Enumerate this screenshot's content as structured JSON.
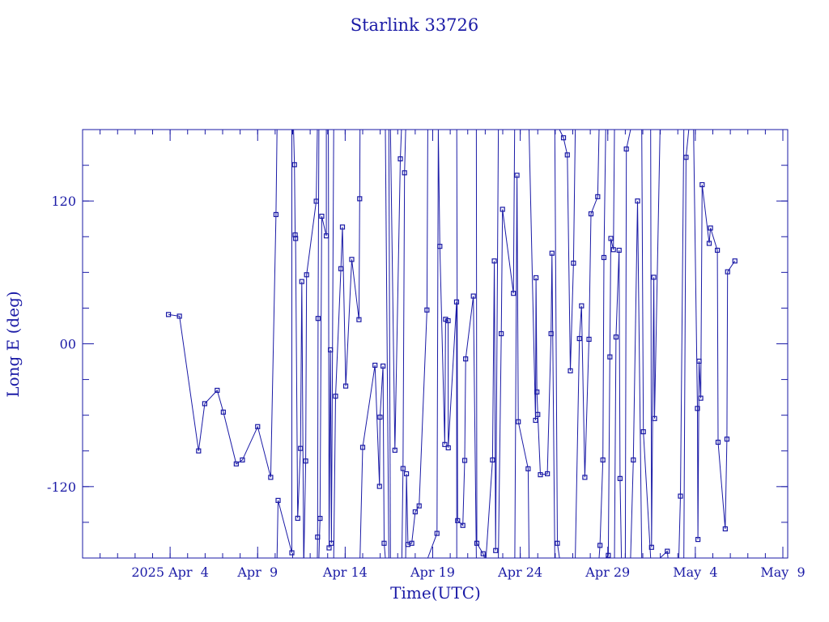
{
  "chart_data": {
    "type": "line",
    "title": "Starlink 33726",
    "xlabel": "Time(UTC)",
    "ylabel": "Long E (deg)",
    "x_tick_labels": [
      "2025 Apr  4",
      "Apr  9",
      "Apr 14",
      "Apr 19",
      "Apr 24",
      "Apr 29",
      "May  4",
      "May  9"
    ],
    "y_tick_labels": [
      "-120",
      "00",
      "120"
    ],
    "xlim": [
      "2025-03-30T00:00",
      "2025-05-09T00:00"
    ],
    "ylim": [
      -180,
      180
    ],
    "x_major_ticks": [
      "2025-04-04T00:00",
      "2025-04-09T00:00",
      "2025-04-14T00:00",
      "2025-04-19T00:00",
      "2025-04-24T00:00",
      "2025-04-29T00:00",
      "2025-05-04T00:00",
      "2025-05-09T00:00"
    ],
    "y_major_ticks": [
      -120,
      0,
      120
    ],
    "y_minor_step": 30,
    "grid": false,
    "color": "#1a1aa6",
    "marker": "square",
    "series": [
      {
        "points": [
          [
            "2025-04-03T21:45",
            24.6
          ],
          [
            "2025-04-04T12:48",
            23.2
          ],
          [
            "2025-04-05T15:03",
            -90.0
          ],
          [
            "2025-04-05T23:28",
            -50.3
          ],
          [
            "2025-04-06T16:33",
            -39.1
          ],
          [
            "2025-04-07T00:57",
            -57.4
          ],
          [
            "2025-04-07T18:42",
            -100.9
          ],
          [
            "2025-04-08T03:06",
            -97.6
          ],
          [
            "2025-04-09T00:00",
            -69.6
          ],
          [
            "2025-04-09T17:54",
            -112.2
          ],
          [
            "2025-04-10T01:09",
            108.6
          ],
          [
            "2025-04-10T02:37",
            180
          ],
          null,
          [
            "2025-04-10T02:37",
            -180
          ],
          [
            "2025-04-10T04:03",
            -131.6
          ],
          [
            "2025-04-10T22:54",
            -175.6
          ],
          [
            "2025-04-10T22:54",
            180
          ],
          null,
          [
            "2025-04-11T01:10",
            180
          ],
          [
            "2025-04-11T02:29",
            150.5
          ],
          [
            "2025-04-11T03:25",
            91.5
          ],
          [
            "2025-04-11T04:03",
            88.5
          ],
          [
            "2025-04-11T06:56",
            -146.6
          ],
          [
            "2025-04-11T10:48",
            -87.9
          ],
          [
            "2025-04-11T12:31",
            52.3
          ],
          [
            "2025-04-11T15:03",
            -180
          ],
          null,
          [
            "2025-04-11T15:03",
            180
          ],
          [
            "2025-04-11T15:28",
            180
          ],
          null,
          [
            "2025-04-11T15:28",
            -180
          ],
          [
            "2025-04-11T17:52",
            -98.5
          ],
          [
            "2025-04-11T19:04",
            58.0
          ],
          [
            "2025-04-12T08:20",
            119.8
          ],
          [
            "2025-04-12T09:54",
            180
          ],
          null,
          [
            "2025-04-12T09:54",
            -180
          ],
          [
            "2025-04-12T10:12",
            -162.4
          ],
          [
            "2025-04-12T10:48",
            21.3
          ],
          [
            "2025-04-12T11:59",
            180
          ],
          null,
          [
            "2025-04-12T11:59",
            -180
          ],
          [
            "2025-04-12T13:32",
            -146.7
          ],
          [
            "2025-04-12T15:53",
            107.2
          ],
          [
            "2025-04-12T22:07",
            90.7
          ],
          [
            "2025-04-12T22:07",
            180
          ],
          null,
          [
            "2025-04-13T00:56",
            180
          ],
          [
            "2025-04-13T01:56",
            -171.5
          ],
          [
            "2025-04-13T03:48",
            -5.1
          ],
          [
            "2025-04-13T05:10",
            -167.6
          ],
          [
            "2025-04-13T08:17",
            180
          ],
          null,
          [
            "2025-04-13T08:17",
            -180
          ],
          [
            "2025-04-13T10:48",
            -44.0
          ],
          [
            "2025-04-13T18:07",
            63.1
          ],
          [
            "2025-04-13T20:15",
            98.1
          ],
          [
            "2025-04-14T00:45",
            -35.5
          ],
          [
            "2025-04-14T09:00",
            70.9
          ],
          [
            "2025-04-14T18:55",
            20.3
          ],
          [
            "2025-04-14T19:52",
            121.9
          ],
          [
            "2025-04-14T20:21",
            180
          ],
          null,
          [
            "2025-04-14T20:21",
            -180
          ],
          [
            "2025-04-15T00:00",
            -87.0
          ],
          [
            "2025-04-15T16:52",
            -18.0
          ],
          [
            "2025-04-15T23:03",
            -119.8
          ],
          [
            "2025-04-15T23:45",
            -61.6
          ],
          [
            "2025-04-16T03:52",
            -18.7
          ],
          [
            "2025-04-16T05:22",
            -167.6
          ],
          [
            "2025-04-16T07:02",
            -180
          ],
          null,
          [
            "2025-04-16T07:02",
            180
          ],
          [
            "2025-04-16T11:48",
            -180
          ],
          null,
          [
            "2025-04-16T11:48",
            180
          ],
          [
            "2025-04-16T14:05",
            -180
          ],
          null,
          [
            "2025-04-16T14:05",
            180
          ],
          [
            "2025-04-16T20:09",
            -89.4
          ],
          [
            "2025-04-17T03:36",
            155.4
          ],
          [
            "2025-04-17T05:10",
            180
          ],
          null,
          [
            "2025-04-17T05:46",
            -180
          ],
          [
            "2025-04-17T07:19",
            -104.8
          ],
          [
            "2025-04-17T09:22",
            143.7
          ],
          [
            "2025-04-17T10:58",
            180
          ],
          null,
          [
            "2025-04-17T10:58",
            -180
          ],
          [
            "2025-04-17T12:00",
            -109.2
          ],
          [
            "2025-04-17T14:05",
            -168.6
          ],
          [
            "2025-04-17T19:16",
            -167.6
          ],
          [
            "2025-04-18T00:00",
            -141.2
          ],
          [
            "2025-04-18T05:24",
            -136.2
          ],
          [
            "2025-04-18T16:04",
            28.4
          ],
          [
            "2025-04-18T17:12",
            180
          ],
          null,
          [
            "2025-04-18T17:12",
            -180
          ],
          [
            "2025-04-19T05:50",
            -159.3
          ],
          [
            "2025-04-19T07:37",
            180
          ],
          [
            "2025-04-19T07:37",
            180
          ],
          [
            "2025-04-19T09:46",
            81.9
          ],
          [
            "2025-04-19T16:33",
            -84.6
          ],
          [
            "2025-04-19T17:38",
            20.6
          ],
          [
            "2025-04-19T21:07",
            19.4
          ],
          [
            "2025-04-19T21:21",
            -87.4
          ],
          [
            "2025-04-20T08:42",
            35.2
          ],
          [
            "2025-04-20T08:56",
            -180
          ],
          null,
          [
            "2025-04-20T08:56",
            180
          ],
          [
            "2025-04-20T10:12",
            -148.6
          ],
          [
            "2025-04-20T17:17",
            -152.6
          ],
          [
            "2025-04-20T19:52",
            -98.0
          ],
          [
            "2025-04-20T21:07",
            -12.7
          ],
          [
            "2025-04-21T07:44",
            40.1
          ],
          [
            "2025-04-21T11:48",
            -180
          ],
          null,
          [
            "2025-04-21T11:48",
            180
          ],
          [
            "2025-04-21T12:28",
            -167.6
          ],
          [
            "2025-04-21T21:07",
            -176.4
          ],
          [
            "2025-04-21T23:02",
            -180
          ],
          null,
          [
            "2025-04-21T23:02",
            180
          ],
          [
            "2025-04-22T01:00",
            180
          ],
          null,
          [
            "2025-04-22T01:00",
            -180
          ],
          [
            "2025-04-22T10:01",
            -97.6
          ],
          [
            "2025-04-22T12:26",
            69.6
          ],
          [
            "2025-04-22T14:17",
            -173.7
          ],
          [
            "2025-04-22T17:58",
            180
          ],
          null,
          [
            "2025-04-22T17:58",
            -180
          ],
          [
            "2025-04-22T21:57",
            8.5
          ],
          [
            "2025-04-22T23:41",
            113.0
          ],
          [
            "2025-04-23T14:41",
            42.4
          ],
          [
            "2025-04-23T16:20",
            180
          ],
          null,
          [
            "2025-04-23T16:33",
            -180
          ],
          [
            "2025-04-23T19:31",
            141.6
          ],
          [
            "2025-04-23T21:18",
            -65.5
          ],
          [
            "2025-04-24T10:48",
            -105.0
          ],
          [
            "2025-04-24T12:02",
            -180
          ],
          null,
          [
            "2025-04-24T12:02",
            180
          ],
          [
            "2025-04-24T21:00",
            -64.3
          ],
          [
            "2025-04-24T21:36",
            55.5
          ],
          [
            "2025-04-24T22:51",
            -40.5
          ],
          [
            "2025-04-25T00:00",
            -59.4
          ],
          [
            "2025-04-25T03:36",
            -110.0
          ],
          [
            "2025-04-25T13:12",
            -109.2
          ],
          [
            "2025-04-25T18:13",
            8.5
          ],
          [
            "2025-04-25T19:30",
            76.1
          ],
          [
            "2025-04-25T23:24",
            -180
          ],
          null,
          [
            "2025-04-25T23:24",
            180
          ],
          [
            "2025-04-26T02:53",
            -167.6
          ],
          [
            "2025-04-26T05:46",
            -180
          ],
          null,
          [
            "2025-04-26T05:46",
            180
          ],
          [
            "2025-04-26T11:17",
            173.1
          ],
          [
            "2025-04-26T16:33",
            158.7
          ],
          [
            "2025-04-26T20:42",
            -22.7
          ],
          [
            "2025-04-27T01:00",
            67.8
          ],
          [
            "2025-04-27T03:25",
            180
          ],
          null,
          [
            "2025-04-27T03:25",
            -180
          ],
          [
            "2025-04-27T09:07",
            4.4
          ],
          [
            "2025-04-27T12:02",
            31.9
          ],
          [
            "2025-04-27T16:33",
            -112.2
          ],
          [
            "2025-04-27T22:15",
            3.8
          ],
          [
            "2025-04-28T01:00",
            109.2
          ],
          [
            "2025-04-28T10:12",
            123.6
          ],
          [
            "2025-04-28T12:02",
            180
          ],
          null,
          [
            "2025-04-28T12:02",
            -180
          ],
          [
            "2025-04-28T13:19",
            -169.4
          ],
          [
            "2025-04-28T17:17",
            -97.6
          ],
          [
            "2025-04-28T18:42",
            72.5
          ],
          [
            "2025-04-28T21:07",
            180
          ],
          null,
          [
            "2025-04-28T21:07",
            -180
          ],
          [
            "2025-04-29T00:43",
            -177.8
          ],
          [
            "2025-04-29T02:53",
            -11.0
          ],
          [
            "2025-04-29T04:12",
            88.5
          ],
          [
            "2025-04-29T07:41",
            79.1
          ],
          [
            "2025-04-29T09:07",
            180
          ],
          null,
          [
            "2025-04-29T09:07",
            -180
          ],
          [
            "2025-04-29T11:17",
            5.7
          ],
          [
            "2025-04-29T15:32",
            78.6
          ],
          [
            "2025-04-29T16:48",
            -113.2
          ],
          [
            "2025-04-29T18:42",
            -180
          ],
          null,
          [
            "2025-04-29T18:42",
            180
          ],
          [
            "2025-04-30T00:00",
            180
          ],
          null,
          [
            "2025-04-30T00:00",
            -180
          ],
          [
            "2025-04-30T01:26",
            163.7
          ],
          [
            "2025-04-30T07:12",
            180
          ],
          null,
          [
            "2025-04-30T07:12",
            -180
          ],
          [
            "2025-04-30T11:02",
            -97.6
          ],
          [
            "2025-04-30T16:48",
            120.0
          ],
          [
            "2025-04-30T22:36",
            -180
          ],
          null,
          [
            "2025-04-30T22:36",
            180
          ],
          [
            "2025-05-01T00:46",
            -73.9
          ],
          [
            "2025-05-01T10:48",
            -180
          ],
          null,
          [
            "2025-05-01T10:48",
            180
          ],
          [
            "2025-05-01T12:00",
            -171.0
          ],
          [
            "2025-05-01T15:03",
            55.9
          ],
          [
            "2025-05-01T16:06",
            -62.8
          ],
          [
            "2025-05-01T23:38",
            180
          ],
          null,
          [
            "2025-05-01T23:38",
            -180
          ],
          [
            "2025-05-02T09:36",
            -174.3
          ],
          [
            "2025-05-02T10:30",
            -180
          ],
          null,
          [
            "2025-05-02T10:30",
            180
          ],
          [
            "2025-05-02T18:00",
            180
          ],
          null,
          [
            "2025-05-02T18:00",
            -180
          ],
          [
            "2025-05-03T00:00",
            -180
          ],
          null,
          [
            "2025-05-03T01:26",
            -180
          ],
          [
            "2025-05-03T03:36",
            -128.0
          ],
          [
            "2025-05-03T08:17",
            180
          ],
          null,
          [
            "2025-05-03T08:17",
            -180
          ],
          [
            "2025-05-03T11:17",
            156.7
          ],
          [
            "2025-05-03T15:03",
            180
          ],
          null,
          [
            "2025-05-03T15:03",
            -180
          ],
          [
            "2025-05-03T21:36",
            -180
          ],
          null,
          [
            "2025-05-03T21:36",
            180
          ],
          [
            "2025-05-04T02:53",
            -54.3
          ],
          [
            "2025-05-04T03:36",
            -164.4
          ],
          [
            "2025-05-04T05:10",
            -14.6
          ],
          [
            "2025-05-04T07:26",
            -45.7
          ],
          [
            "2025-05-04T09:22",
            133.7
          ],
          [
            "2025-05-04T19:01",
            84.4
          ],
          [
            "2025-05-04T20:48",
            97.3
          ],
          [
            "2025-05-05T06:14",
            78.6
          ],
          [
            "2025-05-05T07:12",
            -82.7
          ],
          [
            "2025-05-05T17:02",
            -155.5
          ],
          [
            "2025-05-05T19:21",
            -80.1
          ],
          [
            "2025-05-05T20:15",
            60.5
          ],
          [
            "2025-05-06T06:14",
            69.6
          ]
        ]
      }
    ]
  }
}
